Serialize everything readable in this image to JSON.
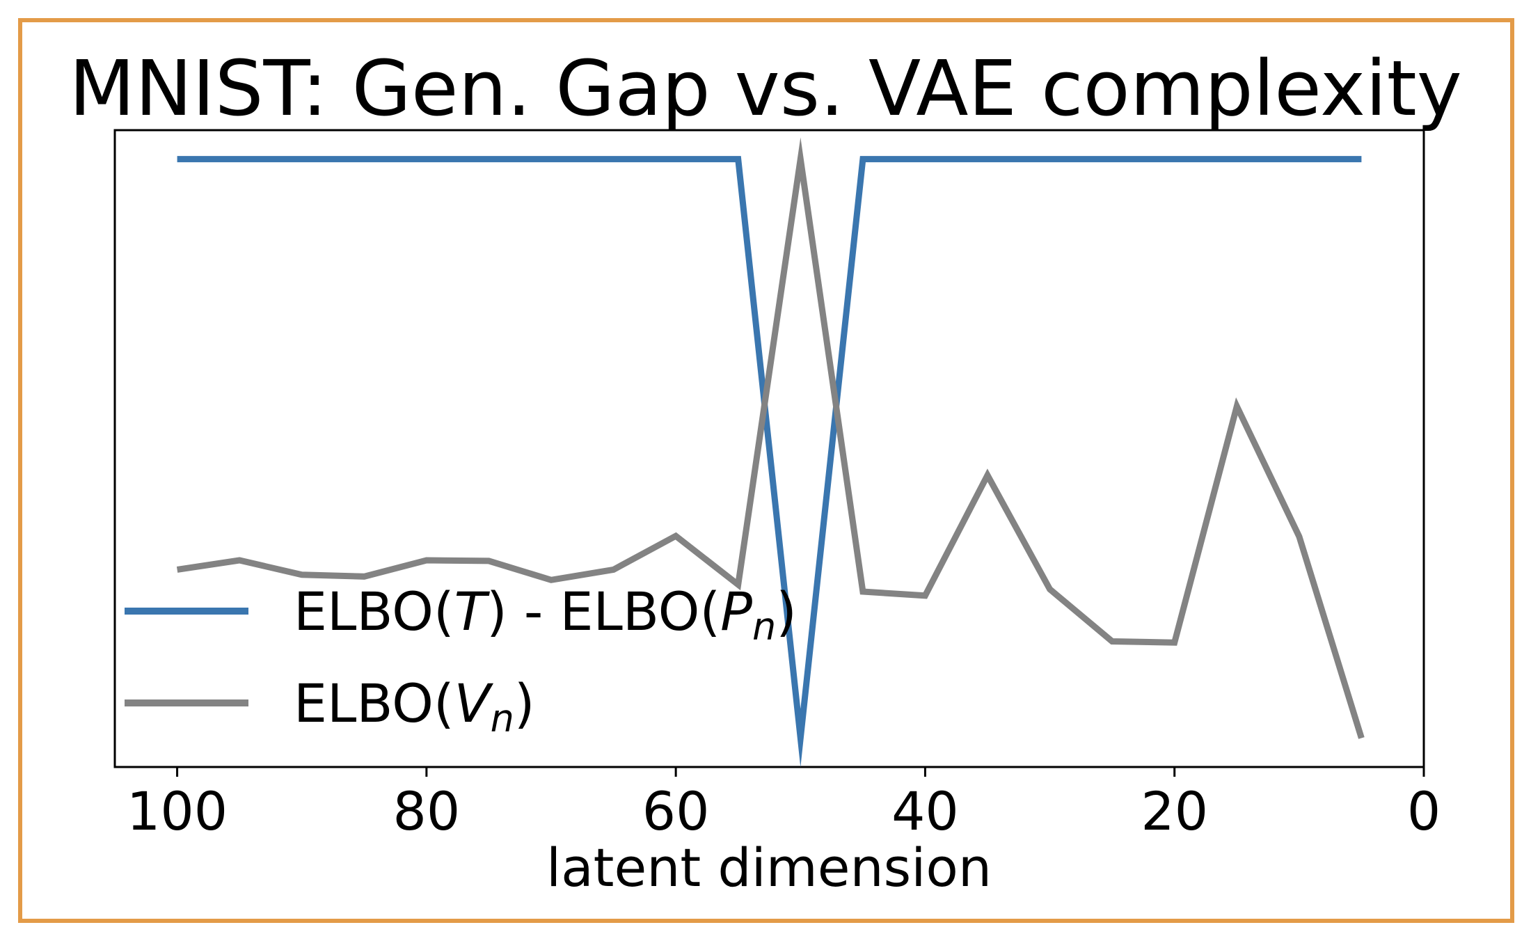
{
  "chart_data": {
    "type": "line",
    "title": "MNIST: Gen. Gap vs. VAE complexity",
    "xlabel": "latent dimension",
    "ylabel": "",
    "x_reversed": true,
    "xlim": [
      105,
      0
    ],
    "ylim": [
      -0.05,
      1.05
    ],
    "y_ticks_shown": false,
    "grid": false,
    "legend_placement": "lower-left",
    "x_ticks": [
      100,
      80,
      60,
      40,
      20,
      0
    ],
    "x_tick_labels": [
      "100",
      "80",
      "60",
      "40",
      "20",
      "0"
    ],
    "x": [
      100,
      95,
      90,
      85,
      80,
      75,
      70,
      65,
      60,
      55,
      50,
      45,
      40,
      35,
      30,
      25,
      20,
      15,
      10,
      5
    ],
    "series": [
      {
        "name": "ELBO(T) - ELBO(Pn)",
        "legend_parts": {
          "main": "ELBO(",
          "italic": "T",
          "mid": ") - ELBO(",
          "italic2": "P",
          "sub": "n",
          "tail": ")"
        },
        "color": "#3a76af",
        "values": [
          1,
          1,
          1,
          1,
          1,
          1,
          1,
          1,
          1,
          1,
          0,
          1,
          1,
          1,
          1,
          1,
          1,
          1,
          1,
          1
        ]
      },
      {
        "name": "ELBO(Vn)",
        "legend_parts": {
          "main": "ELBO(",
          "italic": "V",
          "sub": "n",
          "tail": ")"
        },
        "color": "#838383",
        "values": [
          0.291,
          0.307,
          0.282,
          0.279,
          0.307,
          0.306,
          0.273,
          0.291,
          0.349,
          0.265,
          1.0,
          0.253,
          0.246,
          0.454,
          0.257,
          0.167,
          0.165,
          0.573,
          0.348,
          0.0
        ]
      }
    ]
  }
}
